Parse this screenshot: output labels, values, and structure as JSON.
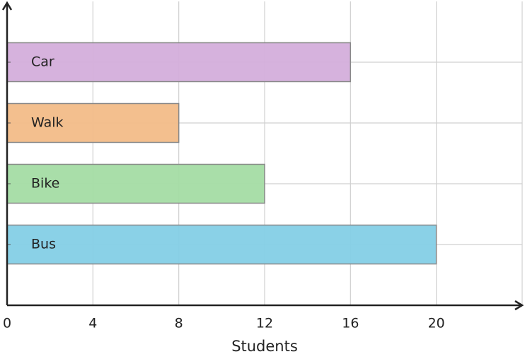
{
  "chart_data": {
    "type": "bar",
    "orientation": "horizontal",
    "categories": [
      "Car",
      "Walk",
      "Bike",
      "Bus"
    ],
    "values": [
      16,
      8,
      12,
      20
    ],
    "colors": [
      "#d4aedb",
      "#f2bc88",
      "#a4dca4",
      "#84cfe6"
    ],
    "xlabel": "Students",
    "xlim": [
      0,
      24
    ],
    "xticks": [
      0,
      4,
      8,
      12,
      16,
      20
    ],
    "grid": true
  }
}
